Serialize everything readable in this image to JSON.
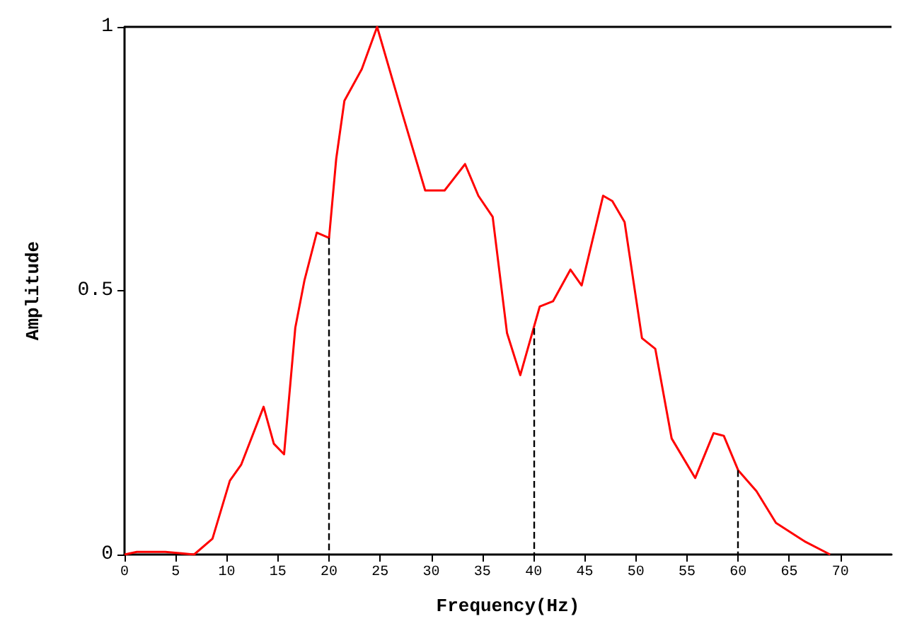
{
  "chart_data": {
    "type": "line",
    "xlabel": "Frequency(Hz)",
    "ylabel": "Amplitude",
    "x": [
      0,
      1.2,
      4,
      6.8,
      8.6,
      10.3,
      11.4,
      13.6,
      14.6,
      15.6,
      16.7,
      17.6,
      18.8,
      20,
      20.7,
      21.5,
      23.2,
      24.7,
      27.1,
      29.4,
      31.3,
      33.3,
      34.6,
      36,
      37.4,
      38.7,
      40.6,
      41.9,
      43.6,
      44.7,
      46.8,
      47.7,
      48.9,
      50.6,
      51.9,
      53.5,
      55.8,
      57.6,
      58.6,
      60,
      61.8,
      63.7,
      66.5,
      69
    ],
    "series": [
      {
        "color": "#ff0000",
        "values": [
          0,
          0.005,
          0.005,
          0,
          0.03,
          0.14,
          0.17,
          0.28,
          0.21,
          0.19,
          0.43,
          0.52,
          0.61,
          0.6,
          0.75,
          0.86,
          0.92,
          1.0,
          0.84,
          0.69,
          0.69,
          0.74,
          0.68,
          0.64,
          0.42,
          0.34,
          0.47,
          0.48,
          0.54,
          0.51,
          0.68,
          0.67,
          0.63,
          0.41,
          0.39,
          0.22,
          0.145,
          0.23,
          0.225,
          0.16,
          0.12,
          0.06,
          0.025,
          0
        ]
      }
    ],
    "xlim": [
      0,
      75
    ],
    "xticks": [
      0,
      5,
      10,
      15,
      20,
      25,
      30,
      35,
      40,
      45,
      50,
      55,
      60,
      65,
      70
    ],
    "ylim": [
      0,
      1
    ],
    "yticks": [
      0,
      0.5,
      1
    ],
    "ref_lines": [
      {
        "axis": "x",
        "value": 20,
        "color": "#000000",
        "line_style": "dashed"
      },
      {
        "axis": "x",
        "value": 40,
        "color": "#000000",
        "line_style": "dashed"
      },
      {
        "axis": "x",
        "value": 60,
        "color": "#000000",
        "line_style": "dashed"
      }
    ],
    "grid": false,
    "marker": "none",
    "line_style": "solid"
  }
}
